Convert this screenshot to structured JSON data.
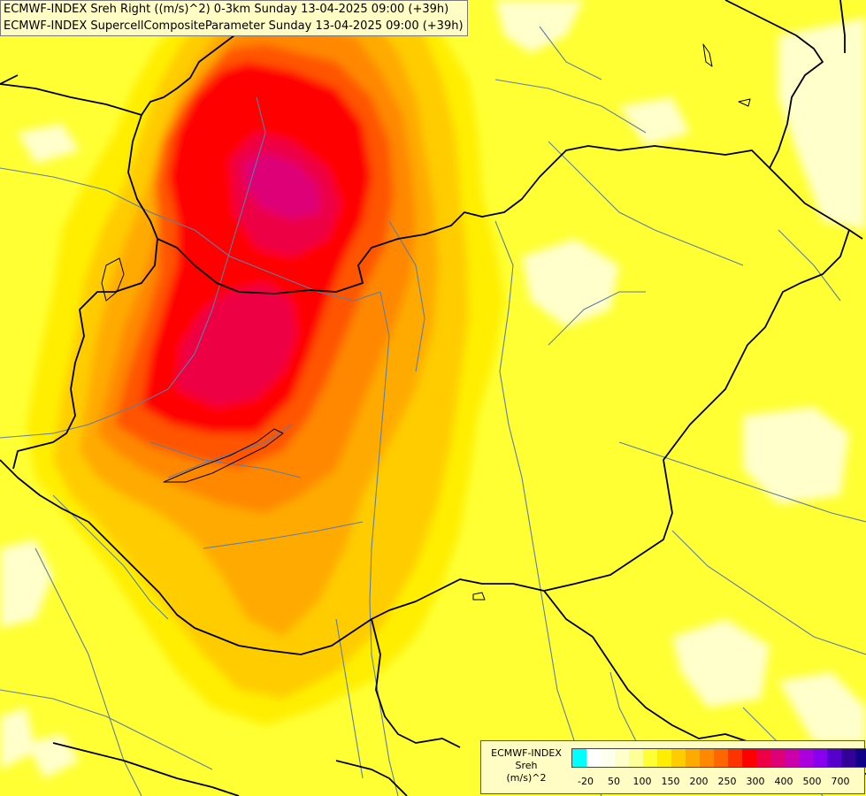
{
  "title_lines": [
    "ECMWF-INDEX Sreh Right ((m/s)^2) 0-3km Sunday 13-04-2025 09:00 (+39h)",
    "ECMWF-INDEX SupercellCompositeParameter Sunday 13-04-2025 09:00 (+39h)"
  ],
  "legend": {
    "title_lines": [
      "ECMWF-INDEX",
      "Sreh",
      "(m/s)^2"
    ],
    "colors": [
      "#00ffff",
      "#ffffff",
      "#ffffee",
      "#ffffcc",
      "#ffff99",
      "#ffff33",
      "#ffee00",
      "#ffcc00",
      "#ffaa00",
      "#ff8800",
      "#ff6600",
      "#ff3300",
      "#ff0000",
      "#ee0044",
      "#dd0077",
      "#cc00aa",
      "#aa00dd",
      "#8800ee",
      "#5500cc",
      "#330099",
      "#110088"
    ],
    "ticks": [
      "-20",
      "50",
      "100",
      "150",
      "200",
      "250",
      "300",
      "400",
      "500",
      "700"
    ]
  },
  "map": {
    "sreh_cells": [
      {
        "name": "northwest-maximum",
        "value": 330
      },
      {
        "name": "southwest-maximum",
        "value": 300
      },
      {
        "name": "south-orange-patch",
        "value": 180
      }
    ],
    "field_colors": {
      "background": "#ffff33",
      "pale": "#ffffcc",
      "yellow_gold": "#ffee00",
      "gold": "#ffcc00",
      "orange": "#ffaa00",
      "dark_orange": "#ff8800",
      "red_orange": "#ff5500",
      "red": "#ff0000",
      "crimson": "#ee0044",
      "magenta": "#dd0077",
      "border": "#000000",
      "river": "#5b7fa6"
    }
  }
}
